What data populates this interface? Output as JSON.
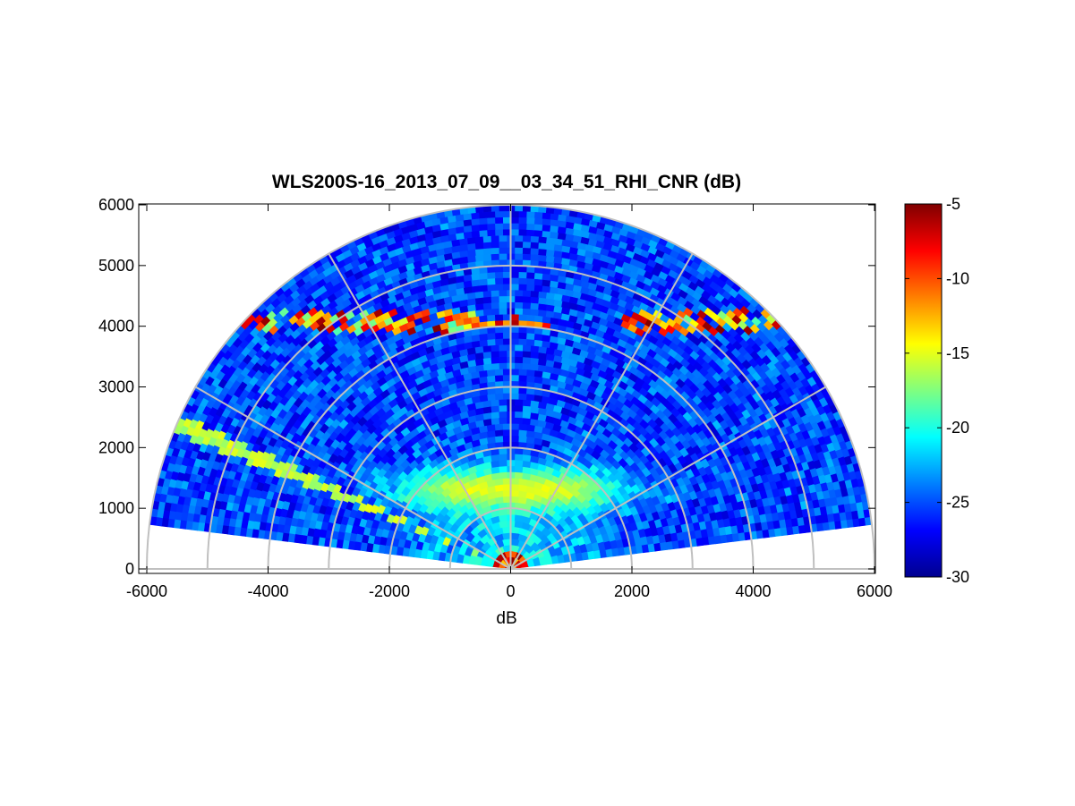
{
  "chart_data": {
    "type": "heatmap",
    "subtype": "polar-rhi-scan",
    "title": "WLS200S-16_2013_07_09__03_34_51_RHI_CNR (dB)",
    "xlabel": "dB",
    "ylabel": "",
    "xlim": [
      -6000,
      6000
    ],
    "ylim": [
      0,
      6000
    ],
    "x_ticks": [
      "-6000",
      "-4000",
      "-2000",
      "0",
      "2000",
      "4000",
      "6000"
    ],
    "y_ticks": [
      "0",
      "1000",
      "2000",
      "3000",
      "4000",
      "5000",
      "6000"
    ],
    "max_range": 6000,
    "range_rings": [
      1000,
      2000,
      3000,
      4000,
      5000,
      6000
    ],
    "spoke_angles_deg": [
      0,
      30,
      60,
      90,
      120,
      150,
      180
    ],
    "scan_elevation_deg": [
      7,
      173
    ],
    "grid": true,
    "colormap": "jet",
    "colorbar": {
      "range": [
        -30,
        -5
      ],
      "ticks": [
        "-5",
        "-10",
        "-15",
        "-20",
        "-25",
        "-30"
      ],
      "position": "right"
    },
    "features": [
      {
        "description": "boundary layer band",
        "height_m": [
          900,
          1700
        ],
        "x_m": [
          -2000,
          2000
        ],
        "cnr_db": -15
      },
      {
        "description": "cloud layer",
        "height_m": [
          3800,
          4400
        ],
        "cnr_db": -5
      },
      {
        "description": "near-field high return",
        "range_m": [
          0,
          300
        ],
        "cnr_db": -5
      },
      {
        "description": "low-elevation high-CNR beams",
        "elevation_deg": [
          155,
          158
        ],
        "cnr_db": -16
      }
    ]
  },
  "colors": {
    "grid": "#c0c0c0",
    "background": "#ffffff",
    "frame": "#000000"
  }
}
